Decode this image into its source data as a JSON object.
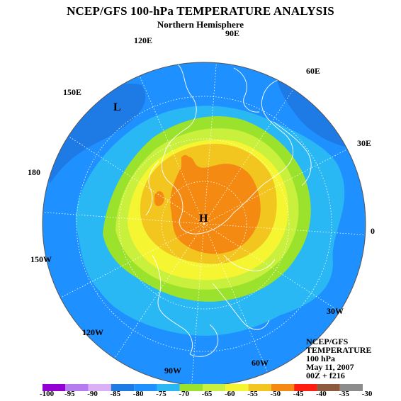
{
  "header": {
    "title": "NCEP/GFS 100-hPa TEMPERATURE ANALYSIS",
    "subtitle": "Northern Hemisphere"
  },
  "longitude_labels": [
    {
      "text": "90E"
    },
    {
      "text": "120E"
    },
    {
      "text": "60E"
    },
    {
      "text": "150E"
    },
    {
      "text": "30E"
    },
    {
      "text": "180"
    },
    {
      "text": "0"
    },
    {
      "text": "150W"
    },
    {
      "text": "30W"
    },
    {
      "text": "120W"
    },
    {
      "text": "90W"
    },
    {
      "text": "60W"
    }
  ],
  "markers": {
    "low": "L",
    "high": "H"
  },
  "info_block": [
    "NCEP/GFS",
    "TEMPERATURE",
    "100 hPa",
    "May 11, 2007",
    "00Z + f216"
  ],
  "colorbar": {
    "ticks": [
      "-100",
      "-95",
      "-90",
      "-85",
      "-80",
      "-75",
      "-70",
      "-65",
      "-60",
      "-55",
      "-50",
      "-45",
      "-40",
      "-35",
      "-30"
    ],
    "colors": [
      "#9400d3",
      "#b77bf0",
      "#dcb0f5",
      "#1e7be6",
      "#1e90ff",
      "#2ab8f5",
      "#9be22d",
      "#c8f03c",
      "#f5f532",
      "#f2c61f",
      "#f58a12",
      "#ff1e0f",
      "#8c5a3c",
      "#8c8c8c"
    ]
  },
  "colors": {
    "c_-80": "#1e90ff",
    "c_-75": "#2ab8f5",
    "c_-70": "#9be22d",
    "c_-65": "#c8f03c",
    "c_-60": "#f5f532",
    "c_-55": "#f2c61f",
    "c_-50": "#f58a12",
    "c_-85": "#1e7be6"
  }
}
